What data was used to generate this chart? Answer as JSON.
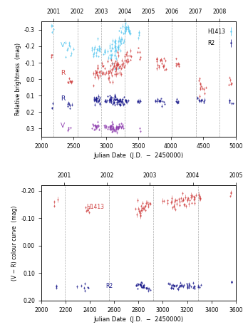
{
  "top_panel": {
    "xlim": [
      2000,
      5000
    ],
    "ylim": [
      0.35,
      -0.35
    ],
    "xlabel": "Julian Date  (J.D.  −  2450000)",
    "ylabel": "Relative brightness  (mag)",
    "top_years": [
      "2001",
      "2002",
      "2003",
      "2004",
      "2005",
      "2006",
      "2007",
      "2008"
    ],
    "top_xticks_jd": [
      2192,
      2557,
      2922,
      3288,
      3653,
      4018,
      4383,
      4749
    ],
    "xticks": [
      2000,
      2500,
      3000,
      3500,
      4000,
      4500,
      5000
    ],
    "yticks": [
      -0.3,
      -0.2,
      -0.1,
      0.0,
      0.1,
      0.2,
      0.3
    ],
    "vlines": [
      2192,
      2557,
      2922,
      3288,
      3653,
      4018,
      4383,
      4749
    ],
    "color_H1413_V": "#5bc8f0",
    "color_H1413_R": "#d04040",
    "color_R2_R": "#1a1a8c",
    "color_R2_V": "#9040b0"
  },
  "bottom_panel": {
    "xlim": [
      2000,
      3600
    ],
    "ylim": [
      0.2,
      -0.22
    ],
    "xlabel": "Julian Date  (J.D.  −  2450000)",
    "ylabel": "(V − R) colour curve  (mag)",
    "top_years": [
      "2001",
      "2002",
      "2003",
      "2004",
      "2005"
    ],
    "top_xticks_jd": [
      2192,
      2557,
      2922,
      3288,
      3653
    ],
    "xticks": [
      2000,
      2200,
      2400,
      2600,
      2800,
      3000,
      3200,
      3400,
      3600
    ],
    "yticks": [
      -0.2,
      -0.1,
      0.0,
      0.1,
      0.2
    ],
    "vlines": [
      2192,
      2557,
      2922,
      3288,
      3653
    ],
    "color_H1413": "#d04040",
    "color_R2": "#1a1a8c"
  }
}
